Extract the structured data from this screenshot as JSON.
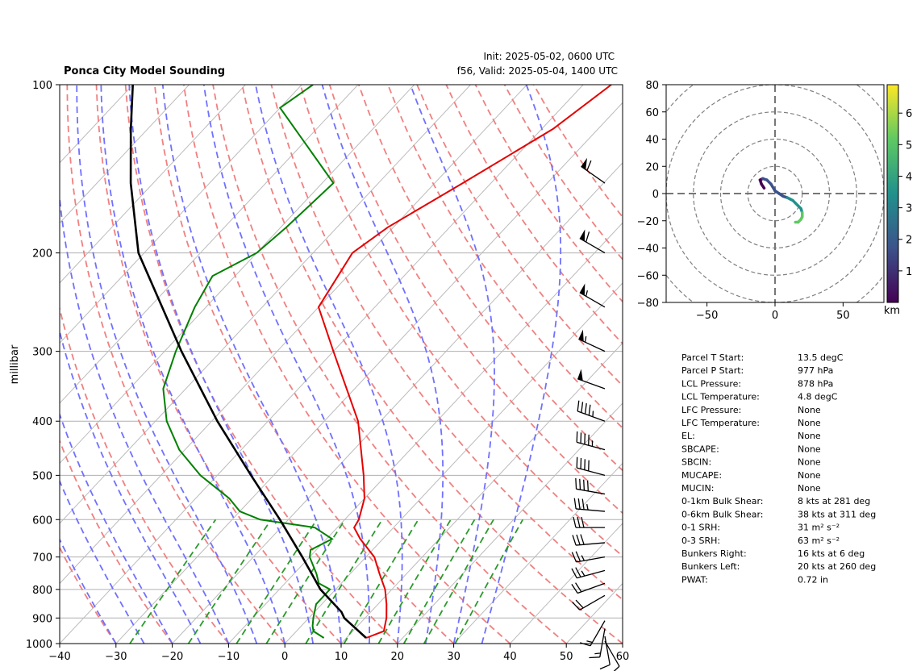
{
  "header": {
    "title": "Ponca City Model Sounding",
    "init": "Init: 2025-05-02, 0600 UTC",
    "valid": "f56, Valid: 2025-05-04, 1400 UTC"
  },
  "chart_data": [
    {
      "type": "line",
      "chart": "skew-t log-p",
      "ylabel": "millibar",
      "xlim": [
        -40,
        60
      ],
      "ylim": [
        1000,
        100
      ],
      "y_log_scale": true,
      "x_ticks": [
        -40,
        -30,
        -20,
        -10,
        0,
        10,
        20,
        30,
        40,
        50,
        60
      ],
      "y_ticks": [
        1000,
        900,
        800,
        700,
        600,
        500,
        400,
        300,
        200,
        100
      ],
      "grid": true,
      "colors": {
        "temperature": "#e60000",
        "dewpoint": "#008000",
        "parcel": "#000000",
        "dry_adiabats": "#f08080",
        "moist_adiabats": "#7070ff",
        "mixing_ratio": "#2a9a2a",
        "isotherms": "#bbbbbb"
      },
      "series": [
        {
          "role": "temperature",
          "pressure": [
            977,
            950,
            900,
            850,
            800,
            750,
            700,
            650,
            620,
            600,
            550,
            500,
            400,
            300,
            250,
            200,
            180,
            150,
            120,
            100
          ],
          "values": [
            13.5,
            15.5,
            13.8,
            11.5,
            8.8,
            5.2,
            1.5,
            -4.0,
            -7.0,
            -7.5,
            -10.0,
            -14.0,
            -24.0,
            -40.0,
            -50.0,
            -53.0,
            -51.0,
            -45.0,
            -38.0,
            -35.0
          ]
        },
        {
          "role": "dewpoint",
          "pressure": [
            977,
            950,
            930,
            900,
            850,
            800,
            780,
            750,
            700,
            680,
            650,
            620,
            600,
            580,
            550,
            500,
            450,
            400,
            350,
            300,
            250,
            220,
            200,
            180,
            150,
            110,
            100
          ],
          "values": [
            6.0,
            3.0,
            2.0,
            0.8,
            -1.0,
            -1.0,
            -4.0,
            -6.0,
            -10.0,
            -11.0,
            -9.0,
            -14.0,
            -25.0,
            -30.0,
            -34.0,
            -43.0,
            -51.0,
            -58.0,
            -64.0,
            -68.0,
            -72.0,
            -74.0,
            -70.0,
            -69.0,
            -68.0,
            -90.0,
            -88.0
          ]
        },
        {
          "role": "parcel",
          "pressure": [
            977,
            900,
            878,
            800,
            700,
            600,
            500,
            400,
            300,
            200,
            150,
            120,
            100
          ],
          "values": [
            13.5,
            6.3,
            4.8,
            -2.7,
            -11.3,
            -21.5,
            -34.0,
            -49.0,
            -67.0,
            -91.0,
            -104.0,
            -113.0,
            -120.0
          ]
        }
      ],
      "wind_barbs": {
        "pressure": [
          990,
          970,
          940,
          910,
          820,
          780,
          740,
          700,
          660,
          620,
          580,
          540,
          500,
          450,
          400,
          350,
          300,
          250,
          200,
          150
        ],
        "speed_kt": [
          10,
          12,
          15,
          15,
          20,
          22,
          25,
          25,
          30,
          30,
          35,
          40,
          40,
          45,
          45,
          50,
          55,
          55,
          60,
          60
        ],
        "direction_deg": [
          150,
          170,
          190,
          210,
          240,
          250,
          255,
          260,
          265,
          270,
          275,
          280,
          285,
          285,
          290,
          290,
          295,
          300,
          300,
          305
        ]
      }
    },
    {
      "type": "line",
      "chart": "hodograph",
      "xlim": [
        -80,
        80
      ],
      "ylim": [
        -80,
        80
      ],
      "x_ticks": [
        -50,
        0,
        50
      ],
      "y_ticks": [
        -80,
        -60,
        -40,
        -20,
        0,
        20,
        40,
        60,
        80
      ],
      "ring_spacing": 20,
      "colorbar": {
        "label": "km",
        "ticks": [
          1,
          2,
          3,
          4,
          5,
          6
        ],
        "range": [
          0,
          6.9
        ],
        "colormap": "viridis"
      },
      "trace": {
        "u": [
          -8,
          -10,
          -11,
          -9,
          -6,
          -3,
          0,
          3,
          6,
          9,
          11,
          13,
          15,
          17,
          19,
          20,
          20,
          19,
          17,
          15
        ],
        "v": [
          4,
          7,
          10,
          11,
          10,
          7,
          2,
          0,
          -2,
          -3,
          -4,
          -5,
          -7,
          -9,
          -11,
          -14,
          -17,
          -19,
          -21,
          -21
        ],
        "height_km": [
          0.05,
          0.3,
          0.6,
          0.9,
          1.2,
          1.5,
          1.8,
          2.1,
          2.4,
          2.7,
          3.0,
          3.3,
          3.6,
          3.9,
          4.2,
          4.6,
          5.0,
          5.4,
          5.8,
          6.2
        ]
      }
    }
  ],
  "stats": [
    {
      "label": "Parcel T Start:",
      "value": "13.5 degC"
    },
    {
      "label": "Parcel P Start:",
      "value": "977 hPa"
    },
    {
      "label": "LCL Pressure:",
      "value": "878 hPa"
    },
    {
      "label": "LCL Temperature:",
      "value": "4.8 degC"
    },
    {
      "label": "LFC Pressure:",
      "value": "None"
    },
    {
      "label": "LFC Temperature:",
      "value": "None"
    },
    {
      "label": "EL:",
      "value": "None"
    },
    {
      "label": "SBCAPE:",
      "value": "None"
    },
    {
      "label": "SBCIN:",
      "value": "None"
    },
    {
      "label": "MUCAPE:",
      "value": "None"
    },
    {
      "label": "MUCIN:",
      "value": "None"
    },
    {
      "label": "0-1km Bulk Shear:",
      "value": "8 kts at 281 deg"
    },
    {
      "label": "0-6km Bulk Shear:",
      "value": "38 kts at 311 deg"
    },
    {
      "label": "0-1 SRH:",
      "value": "31 m² s⁻²"
    },
    {
      "label": "0-3 SRH:",
      "value": "63 m² s⁻²"
    },
    {
      "label": "Bunkers Right:",
      "value": "16 kts at 6 deg"
    },
    {
      "label": "Bunkers Left:",
      "value": "20 kts at 260 deg"
    },
    {
      "label": "PWAT:",
      "value": "0.72 in"
    }
  ]
}
